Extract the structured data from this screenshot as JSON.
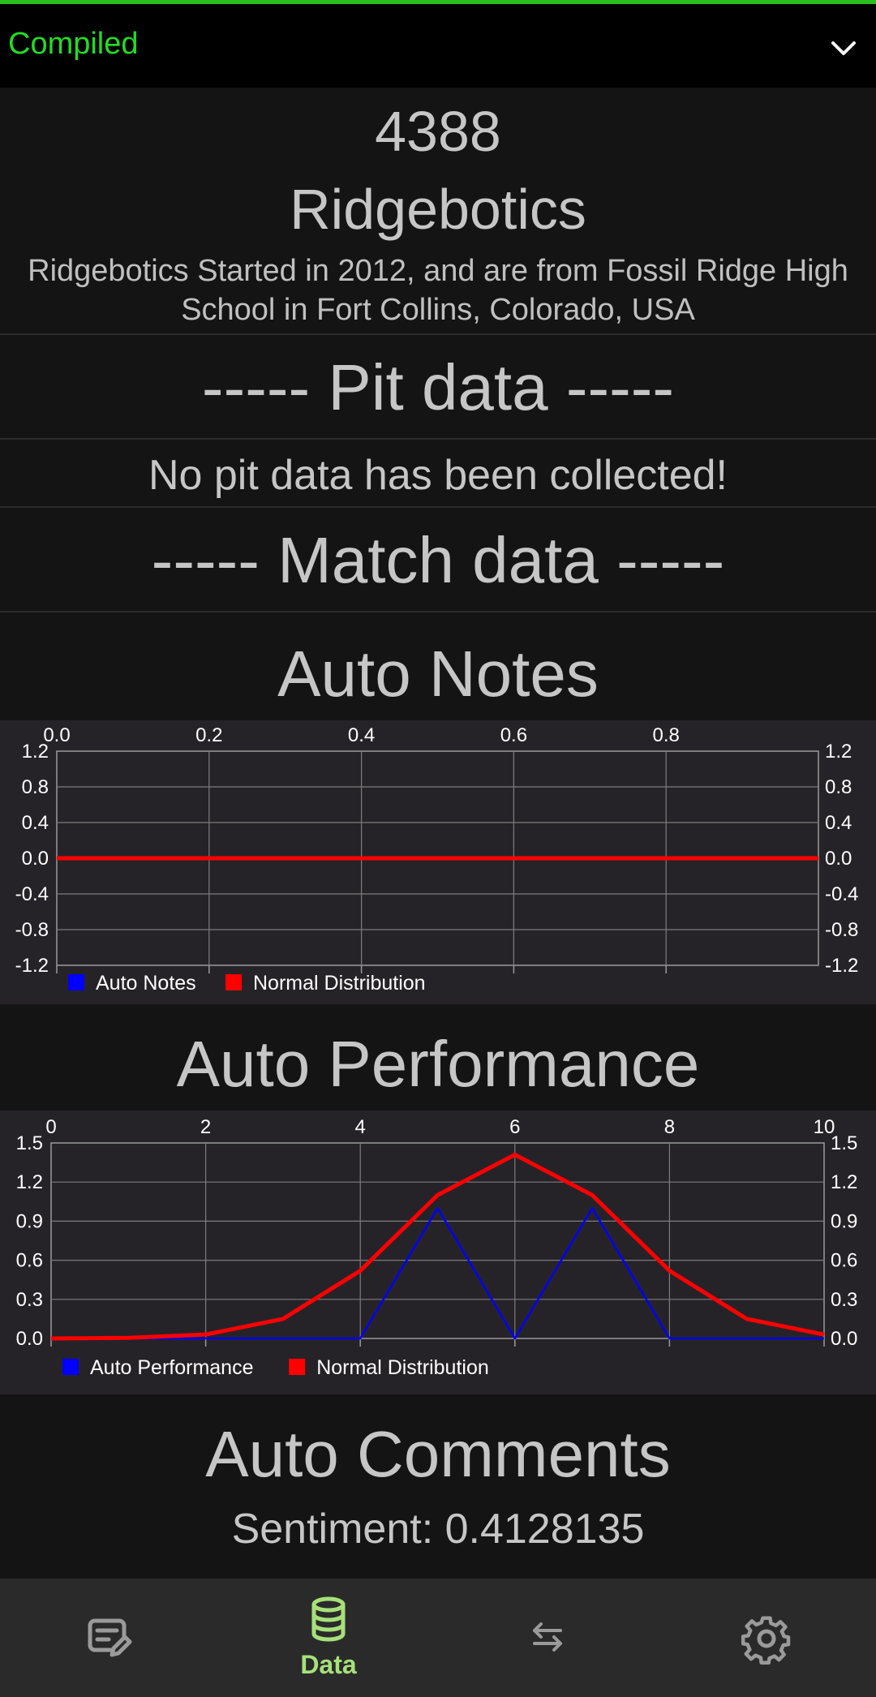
{
  "top_bar": {
    "status": "Compiled",
    "status_color": "#22dd22",
    "expand_icon": "chevron-down-icon"
  },
  "team": {
    "number": "4388",
    "name": "Ridgebotics",
    "description": "Ridgebotics Started in 2012, and are from Fossil Ridge High School in Fort Collins, Colorado, USA"
  },
  "pit": {
    "header": "----- Pit data -----",
    "message": "No pit data has been collected!"
  },
  "match": {
    "header": "----- Match data -----"
  },
  "auto_notes": {
    "title": "Auto Notes"
  },
  "auto_performance": {
    "title": "Auto Performance"
  },
  "auto_comments": {
    "title": "Auto Comments",
    "sentiment": "Sentiment: 0.4128135"
  },
  "chart_data": [
    {
      "type": "line",
      "title": "Auto Notes",
      "x_ticks": [
        "0.0",
        "0.2",
        "0.4",
        "0.6",
        "0.8"
      ],
      "y_ticks": [
        "1.2",
        "0.8",
        "0.4",
        "0.0",
        "-0.4",
        "-0.8",
        "-1.2"
      ],
      "xlim": [
        0,
        1
      ],
      "ylim": [
        -1.2,
        1.2
      ],
      "grid": true,
      "legend_placement": "bottom-left",
      "series": [
        {
          "name": "Auto Notes",
          "color": "#0000ff",
          "x": [],
          "y": []
        },
        {
          "name": "Normal Distribution",
          "color": "#ff0000",
          "x": [
            0,
            1
          ],
          "y": [
            0,
            0
          ]
        }
      ]
    },
    {
      "type": "line",
      "title": "Auto Performance",
      "x_ticks": [
        "0",
        "2",
        "4",
        "6",
        "8",
        "10"
      ],
      "y_ticks": [
        "1.5",
        "1.2",
        "0.9",
        "0.6",
        "0.3",
        "0.0"
      ],
      "xlim": [
        0,
        10
      ],
      "ylim": [
        0,
        1.5
      ],
      "grid": true,
      "legend_placement": "bottom-left",
      "series": [
        {
          "name": "Auto Performance",
          "color": "#0000ff",
          "x": [
            0,
            1,
            2,
            3,
            4,
            5,
            6,
            7,
            8,
            9,
            10
          ],
          "y": [
            0,
            0,
            0,
            0,
            0,
            1,
            0,
            1,
            0,
            0,
            0
          ]
        },
        {
          "name": "Normal Distribution",
          "color": "#ff0000",
          "x": [
            0,
            1,
            2,
            3,
            4,
            5,
            6,
            7,
            8,
            9,
            10
          ],
          "y": [
            0.0,
            0.005,
            0.03,
            0.15,
            0.52,
            1.1,
            1.41,
            1.1,
            0.52,
            0.15,
            0.03
          ]
        }
      ]
    }
  ],
  "bottom_nav": {
    "items": [
      {
        "icon": "edit-note-icon",
        "label": ""
      },
      {
        "icon": "database-icon",
        "label": "Data",
        "active": true
      },
      {
        "icon": "swap-arrows-icon",
        "label": ""
      },
      {
        "icon": "gear-icon",
        "label": ""
      }
    ],
    "active_color": "#a6e07a",
    "inactive_color": "#9a9a9a"
  }
}
